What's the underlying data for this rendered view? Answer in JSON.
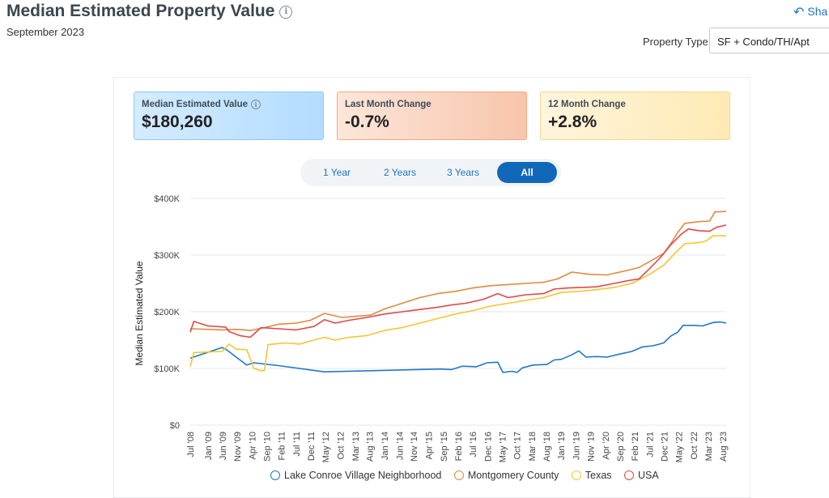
{
  "header": {
    "title": "Median Estimated Property Value",
    "date": "September 2023",
    "share_label": "Sha"
  },
  "property_type": {
    "label": "Property Type",
    "value": "SF + Condo/TH/Apt"
  },
  "stats": [
    {
      "label": "Median Estimated Value",
      "value": "$180,260",
      "info": "i"
    },
    {
      "label": "Last Month Change",
      "value": "-0.7%"
    },
    {
      "label": "12 Month Change",
      "value": "+2.8%"
    }
  ],
  "time_ranges": [
    {
      "label": "1 Year",
      "active": false
    },
    {
      "label": "2 Years",
      "active": false
    },
    {
      "label": "3 Years",
      "active": false
    },
    {
      "label": "All",
      "active": true
    }
  ],
  "colors": {
    "lake_conroe": "#1f78c8",
    "montgomery": "#e08a3c",
    "texas": "#f2c632",
    "usa": "#e04848",
    "grid": "#e3e8ee",
    "axis_text": "#444444"
  },
  "chart_data": {
    "type": "line",
    "title": "Median Estimated Property Value",
    "xlabel": "",
    "ylabel": "Median Estimated Value",
    "ylim": [
      0,
      400000
    ],
    "x_range": [
      2008.5,
      2023.67
    ],
    "y_ticks": [
      {
        "value": 0,
        "label": "$0"
      },
      {
        "value": 100000,
        "label": "$100K"
      },
      {
        "value": 200000,
        "label": "$200K"
      },
      {
        "value": 300000,
        "label": "$300K"
      },
      {
        "value": 400000,
        "label": "$400K"
      }
    ],
    "x_ticks": [
      {
        "value": 2008.5,
        "label": "Jul '08"
      },
      {
        "value": 2009.0,
        "label": "Jan '09"
      },
      {
        "value": 2009.42,
        "label": "Jun '09"
      },
      {
        "value": 2009.83,
        "label": "Nov '09"
      },
      {
        "value": 2010.25,
        "label": "Apr '10"
      },
      {
        "value": 2010.67,
        "label": "Sep '10"
      },
      {
        "value": 2011.08,
        "label": "Feb '11"
      },
      {
        "value": 2011.5,
        "label": "Jul '11"
      },
      {
        "value": 2011.92,
        "label": "Dec '11"
      },
      {
        "value": 2012.33,
        "label": "May '12"
      },
      {
        "value": 2012.75,
        "label": "Oct '12"
      },
      {
        "value": 2013.17,
        "label": "Mar '13"
      },
      {
        "value": 2013.58,
        "label": "Aug '13"
      },
      {
        "value": 2014.0,
        "label": "Jan '14"
      },
      {
        "value": 2014.42,
        "label": "Jun '14"
      },
      {
        "value": 2014.83,
        "label": "Nov '14"
      },
      {
        "value": 2015.25,
        "label": "Apr '15"
      },
      {
        "value": 2015.67,
        "label": "Sep '15"
      },
      {
        "value": 2016.08,
        "label": "Feb '16"
      },
      {
        "value": 2016.5,
        "label": "Jul '16"
      },
      {
        "value": 2016.92,
        "label": "Dec '16"
      },
      {
        "value": 2017.33,
        "label": "May '17"
      },
      {
        "value": 2017.75,
        "label": "Oct '17"
      },
      {
        "value": 2018.17,
        "label": "Mar '18"
      },
      {
        "value": 2018.58,
        "label": "Aug '18"
      },
      {
        "value": 2019.0,
        "label": "Jan '19"
      },
      {
        "value": 2019.42,
        "label": "Jun '19"
      },
      {
        "value": 2019.83,
        "label": "Nov '19"
      },
      {
        "value": 2020.25,
        "label": "Apr '20"
      },
      {
        "value": 2020.67,
        "label": "Sep '20"
      },
      {
        "value": 2021.08,
        "label": "Feb '21"
      },
      {
        "value": 2021.5,
        "label": "Jul '21"
      },
      {
        "value": 2021.92,
        "label": "Dec '21"
      },
      {
        "value": 2022.33,
        "label": "May '22"
      },
      {
        "value": 2022.75,
        "label": "Oct '22"
      },
      {
        "value": 2023.17,
        "label": "Mar '23"
      },
      {
        "value": 2023.58,
        "label": "Aug '23"
      }
    ],
    "series": [
      {
        "name": "Lake Conroe Village Neighborhood",
        "color_key": "lake_conroe",
        "points": [
          [
            2008.5,
            118000
          ],
          [
            2009.4,
            137000
          ],
          [
            2009.55,
            132000
          ],
          [
            2009.8,
            120000
          ],
          [
            2010.1,
            106000
          ],
          [
            2010.3,
            110000
          ],
          [
            2011.0,
            105000
          ],
          [
            2012.3,
            94000
          ],
          [
            2015.6,
            99000
          ],
          [
            2015.9,
            98000
          ],
          [
            2016.2,
            104000
          ],
          [
            2016.6,
            103000
          ],
          [
            2016.9,
            110000
          ],
          [
            2017.2,
            111000
          ],
          [
            2017.35,
            93000
          ],
          [
            2017.6,
            95000
          ],
          [
            2017.75,
            93000
          ],
          [
            2017.9,
            101000
          ],
          [
            2018.2,
            106000
          ],
          [
            2018.6,
            107000
          ],
          [
            2018.8,
            115000
          ],
          [
            2019.0,
            116000
          ],
          [
            2019.3,
            124000
          ],
          [
            2019.5,
            131000
          ],
          [
            2019.7,
            120000
          ],
          [
            2020.0,
            121000
          ],
          [
            2020.3,
            120000
          ],
          [
            2020.7,
            126000
          ],
          [
            2021.0,
            130000
          ],
          [
            2021.3,
            138000
          ],
          [
            2021.6,
            140000
          ],
          [
            2021.9,
            145000
          ],
          [
            2022.1,
            157000
          ],
          [
            2022.3,
            164000
          ],
          [
            2022.45,
            176000
          ],
          [
            2022.75,
            176000
          ],
          [
            2023.0,
            175000
          ],
          [
            2023.3,
            181000
          ],
          [
            2023.5,
            182000
          ],
          [
            2023.67,
            180000
          ]
        ]
      },
      {
        "name": "Montgomery County",
        "color_key": "montgomery",
        "points": [
          [
            2008.5,
            170000
          ],
          [
            2009.0,
            169000
          ],
          [
            2009.4,
            168000
          ],
          [
            2009.8,
            169000
          ],
          [
            2010.2,
            167000
          ],
          [
            2010.6,
            172000
          ],
          [
            2011.0,
            178000
          ],
          [
            2011.5,
            180000
          ],
          [
            2011.9,
            185000
          ],
          [
            2012.3,
            197000
          ],
          [
            2012.8,
            190000
          ],
          [
            2013.2,
            192000
          ],
          [
            2013.6,
            194000
          ],
          [
            2014.0,
            205000
          ],
          [
            2014.5,
            215000
          ],
          [
            2015.0,
            225000
          ],
          [
            2015.5,
            232000
          ],
          [
            2016.0,
            236000
          ],
          [
            2016.5,
            242000
          ],
          [
            2017.0,
            246000
          ],
          [
            2017.5,
            248000
          ],
          [
            2018.0,
            250000
          ],
          [
            2018.5,
            252000
          ],
          [
            2018.9,
            258000
          ],
          [
            2019.3,
            270000
          ],
          [
            2019.8,
            266000
          ],
          [
            2020.3,
            265000
          ],
          [
            2020.8,
            272000
          ],
          [
            2021.2,
            278000
          ],
          [
            2021.6,
            292000
          ],
          [
            2021.9,
            303000
          ],
          [
            2022.1,
            320000
          ],
          [
            2022.3,
            340000
          ],
          [
            2022.5,
            356000
          ],
          [
            2022.9,
            359000
          ],
          [
            2023.2,
            360000
          ],
          [
            2023.35,
            376000
          ],
          [
            2023.67,
            377000
          ]
        ]
      },
      {
        "name": "Texas",
        "color_key": "texas",
        "points": [
          [
            2008.5,
            103000
          ],
          [
            2008.6,
            128000
          ],
          [
            2009.4,
            130000
          ],
          [
            2009.6,
            143000
          ],
          [
            2009.8,
            134000
          ],
          [
            2010.1,
            133000
          ],
          [
            2010.3,
            100000
          ],
          [
            2010.5,
            96000
          ],
          [
            2010.6,
            96000
          ],
          [
            2010.7,
            142000
          ],
          [
            2011.2,
            145000
          ],
          [
            2011.6,
            143000
          ],
          [
            2012.0,
            150000
          ],
          [
            2012.3,
            155000
          ],
          [
            2012.6,
            150000
          ],
          [
            2013.0,
            155000
          ],
          [
            2013.5,
            158000
          ],
          [
            2014.0,
            167000
          ],
          [
            2014.5,
            172000
          ],
          [
            2015.0,
            180000
          ],
          [
            2015.5,
            188000
          ],
          [
            2016.0,
            196000
          ],
          [
            2016.5,
            202000
          ],
          [
            2017.0,
            210000
          ],
          [
            2017.5,
            215000
          ],
          [
            2018.0,
            220000
          ],
          [
            2018.5,
            225000
          ],
          [
            2019.0,
            234000
          ],
          [
            2019.5,
            236000
          ],
          [
            2020.0,
            239000
          ],
          [
            2020.5,
            243000
          ],
          [
            2021.0,
            250000
          ],
          [
            2021.5,
            266000
          ],
          [
            2021.9,
            282000
          ],
          [
            2022.2,
            302000
          ],
          [
            2022.5,
            320000
          ],
          [
            2022.9,
            322000
          ],
          [
            2023.1,
            325000
          ],
          [
            2023.3,
            334000
          ],
          [
            2023.67,
            334000
          ]
        ]
      },
      {
        "name": "USA",
        "color_key": "usa",
        "points": [
          [
            2008.5,
            164000
          ],
          [
            2008.6,
            183000
          ],
          [
            2009.0,
            175000
          ],
          [
            2009.5,
            173000
          ],
          [
            2009.6,
            165000
          ],
          [
            2009.9,
            158000
          ],
          [
            2010.2,
            155000
          ],
          [
            2010.5,
            172000
          ],
          [
            2011.0,
            170000
          ],
          [
            2011.5,
            168000
          ],
          [
            2012.0,
            174000
          ],
          [
            2012.3,
            186000
          ],
          [
            2012.6,
            180000
          ],
          [
            2013.0,
            185000
          ],
          [
            2013.5,
            190000
          ],
          [
            2014.0,
            196000
          ],
          [
            2014.5,
            200000
          ],
          [
            2015.0,
            204000
          ],
          [
            2015.5,
            208000
          ],
          [
            2015.9,
            212000
          ],
          [
            2016.3,
            215000
          ],
          [
            2016.8,
            222000
          ],
          [
            2017.2,
            232000
          ],
          [
            2017.5,
            225000
          ],
          [
            2018.0,
            230000
          ],
          [
            2018.5,
            232000
          ],
          [
            2018.8,
            240000
          ],
          [
            2019.2,
            242000
          ],
          [
            2019.6,
            243000
          ],
          [
            2020.0,
            244000
          ],
          [
            2020.5,
            250000
          ],
          [
            2020.9,
            255000
          ],
          [
            2021.2,
            258000
          ],
          [
            2021.5,
            276000
          ],
          [
            2021.8,
            295000
          ],
          [
            2022.1,
            318000
          ],
          [
            2022.4,
            337000
          ],
          [
            2022.6,
            346000
          ],
          [
            2022.9,
            343000
          ],
          [
            2023.2,
            342000
          ],
          [
            2023.4,
            349000
          ],
          [
            2023.67,
            353000
          ]
        ]
      }
    ],
    "legend": "bottom"
  }
}
